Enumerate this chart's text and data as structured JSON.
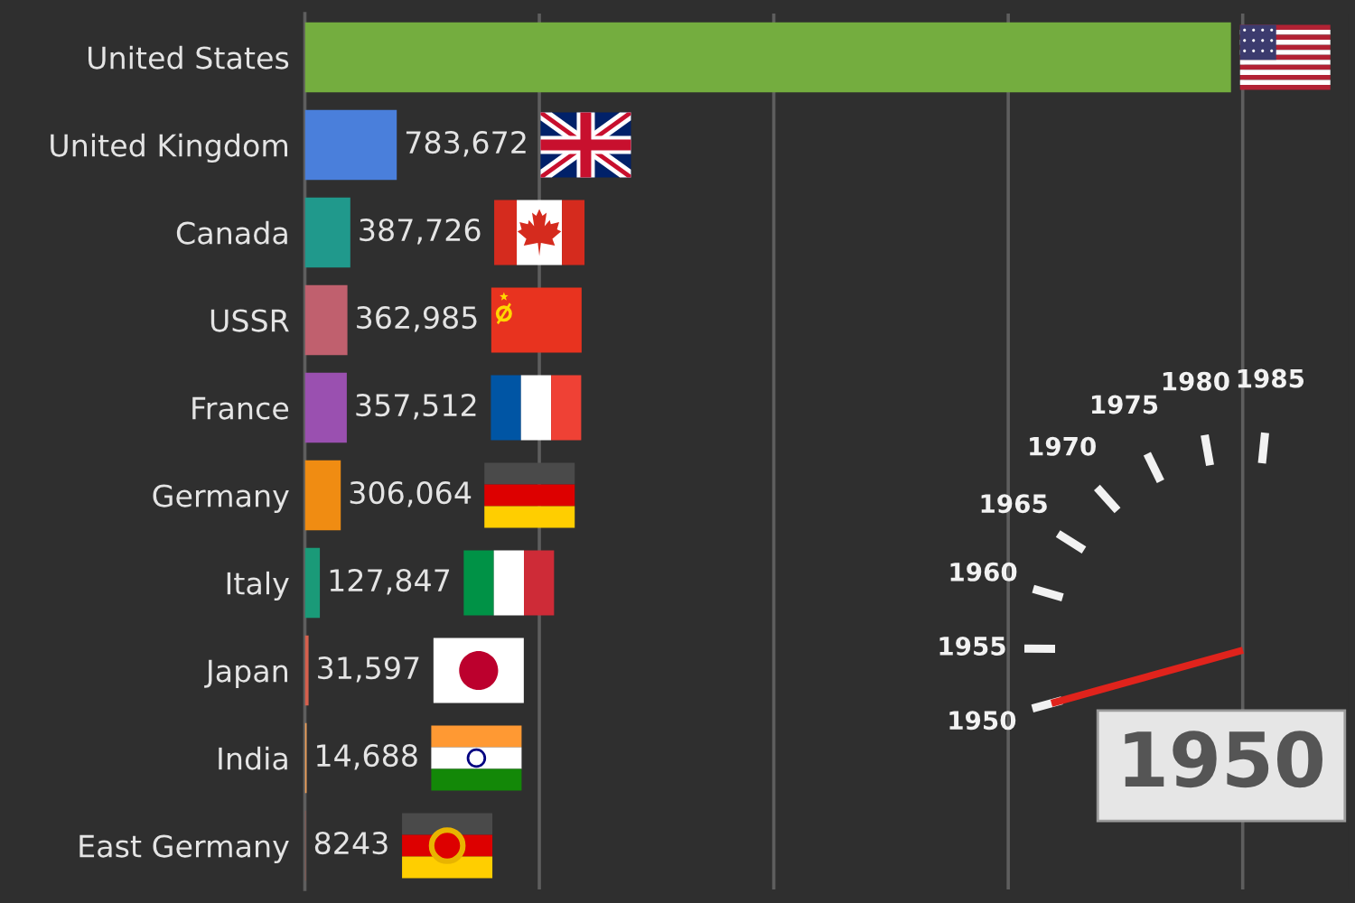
{
  "chart_data": {
    "type": "bar",
    "orientation": "horizontal",
    "title": "1950",
    "categories": [
      "United States",
      "United Kingdom",
      "Canada",
      "USSR",
      "France",
      "Germany",
      "Italy",
      "Japan",
      "India",
      "East Germany"
    ],
    "values": [
      7900000,
      783672,
      387726,
      362985,
      357512,
      306064,
      127847,
      31597,
      14688,
      8243
    ],
    "colors": [
      "#74ad3f",
      "#4a7fdb",
      "#20998c",
      "#c0606e",
      "#9a50b0",
      "#f08c12",
      "#1a9a78",
      "#d6604d",
      "#f4a259",
      "#8c564b"
    ],
    "value_labels": [
      null,
      "783,672",
      "387,726",
      "362,985",
      "357,512",
      "306,064",
      "127,847",
      "31,597",
      "14,688",
      "8243"
    ],
    "xlim": [
      0,
      8900000
    ],
    "xticks": [
      {
        "value": 2000000,
        "label": null
      },
      {
        "value": 4000000,
        "label": null
      },
      {
        "value": 6000000,
        "label": null
      },
      {
        "value": 8000000,
        "label": null
      }
    ],
    "grid": "x",
    "tick_labels": "y",
    "annotations": [
      "1950",
      "1955",
      "1960",
      "1965",
      "1970",
      "1975",
      "1980",
      "1985"
    ]
  }
}
